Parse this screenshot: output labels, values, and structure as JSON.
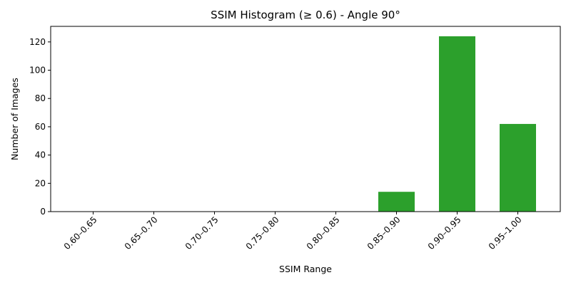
{
  "chart_data": {
    "type": "bar",
    "title": "SSIM Histogram (≥ 0.6) - Angle 90°",
    "xlabel": "SSIM Range",
    "ylabel": "Number of Images",
    "categories": [
      "0.60–0.65",
      "0.65–0.70",
      "0.70–0.75",
      "0.75–0.80",
      "0.80–0.85",
      "0.85–0.90",
      "0.90–0.95",
      "0.95–1.00"
    ],
    "values": [
      0,
      0,
      0,
      0,
      0,
      14,
      124,
      62
    ],
    "ylim": [
      0,
      131
    ],
    "yticks": [
      0,
      20,
      40,
      60,
      80,
      100,
      120
    ],
    "bar_color": "#2ca02c",
    "grid": false,
    "legend": "none"
  }
}
